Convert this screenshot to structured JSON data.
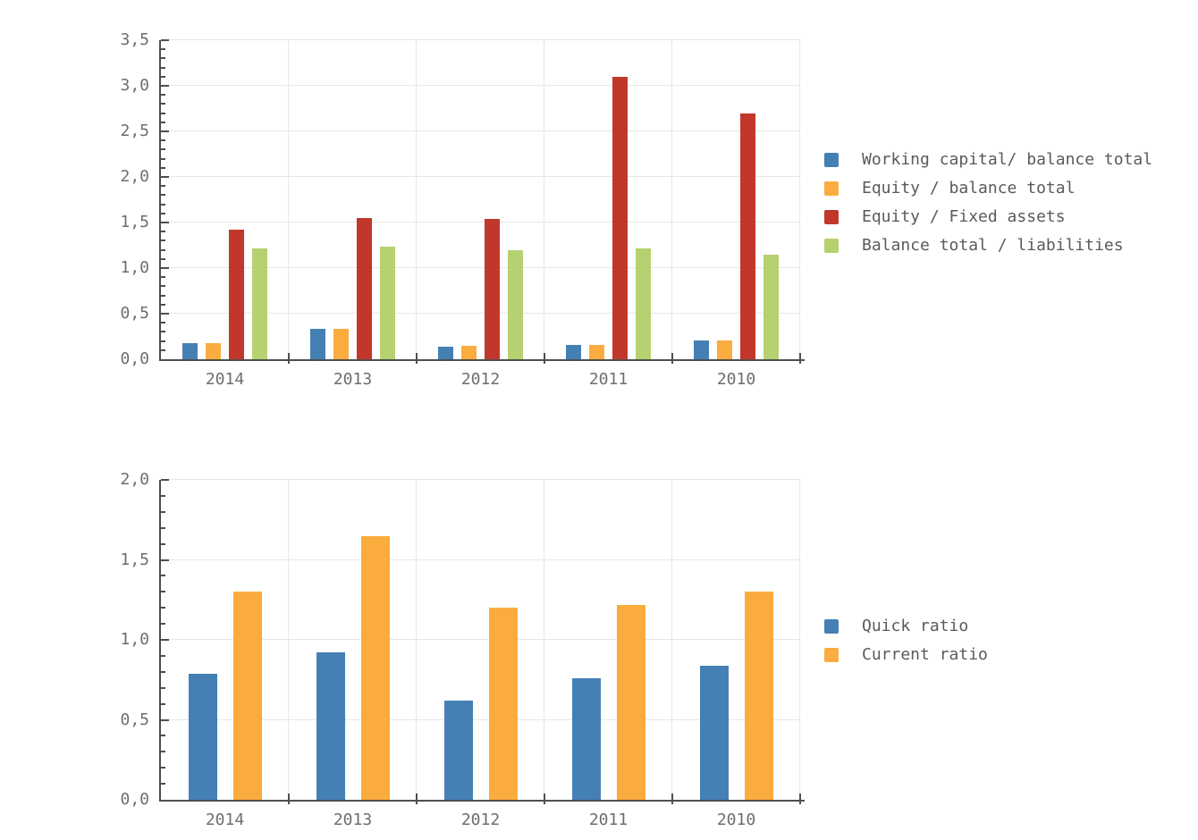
{
  "page": {
    "background": "#ffffff"
  },
  "colors": {
    "series_blue": "#4580b4",
    "series_orange": "#fbac3e",
    "series_red": "#c2372b",
    "series_green": "#b5d170",
    "axis": "#4f4f4f",
    "gridline": "#e7e7e7",
    "tick_label_text": "#6e6e6e",
    "legend_text": "#5a5a5a"
  },
  "chart_data": [
    {
      "type": "bar",
      "title": "",
      "xlabel": "",
      "ylabel": "",
      "categories": [
        "2014",
        "2013",
        "2012",
        "2011",
        "2010"
      ],
      "series": [
        {
          "name": "Working capital/ balance total",
          "color": "#4580b4",
          "values": [
            0.18,
            0.33,
            0.14,
            0.16,
            0.21
          ]
        },
        {
          "name": "Equity / balance total",
          "color": "#fbac3e",
          "values": [
            0.18,
            0.33,
            0.15,
            0.16,
            0.21
          ]
        },
        {
          "name": "Equity / Fixed assets",
          "color": "#c2372b",
          "values": [
            1.42,
            1.55,
            1.54,
            3.1,
            2.7
          ]
        },
        {
          "name": "Balance total / liabilities",
          "color": "#b5d170",
          "values": [
            1.22,
            1.24,
            1.2,
            1.22,
            1.15
          ]
        }
      ],
      "ylim": [
        0,
        3.5
      ],
      "ytick_step": 0.5,
      "minor_tick_step": 0.1,
      "ytick_labels": [
        "0,0",
        "0,5",
        "1,0",
        "1,5",
        "2,0",
        "2,5",
        "3,0",
        "3,5"
      ],
      "grid": true,
      "legend_position": "right"
    },
    {
      "type": "bar",
      "title": "",
      "xlabel": "",
      "ylabel": "",
      "categories": [
        "2014",
        "2013",
        "2012",
        "2011",
        "2010"
      ],
      "series": [
        {
          "name": "Quick ratio",
          "color": "#4580b4",
          "values": [
            0.79,
            0.92,
            0.62,
            0.76,
            0.84
          ]
        },
        {
          "name": "Current ratio",
          "color": "#fbac3e",
          "values": [
            1.3,
            1.65,
            1.2,
            1.22,
            1.3
          ]
        }
      ],
      "ylim": [
        0,
        2.0
      ],
      "ytick_step": 0.5,
      "minor_tick_step": 0.1,
      "ytick_labels": [
        "0,0",
        "0,5",
        "1,0",
        "1,5",
        "2,0"
      ],
      "grid": true,
      "legend_position": "right"
    }
  ]
}
